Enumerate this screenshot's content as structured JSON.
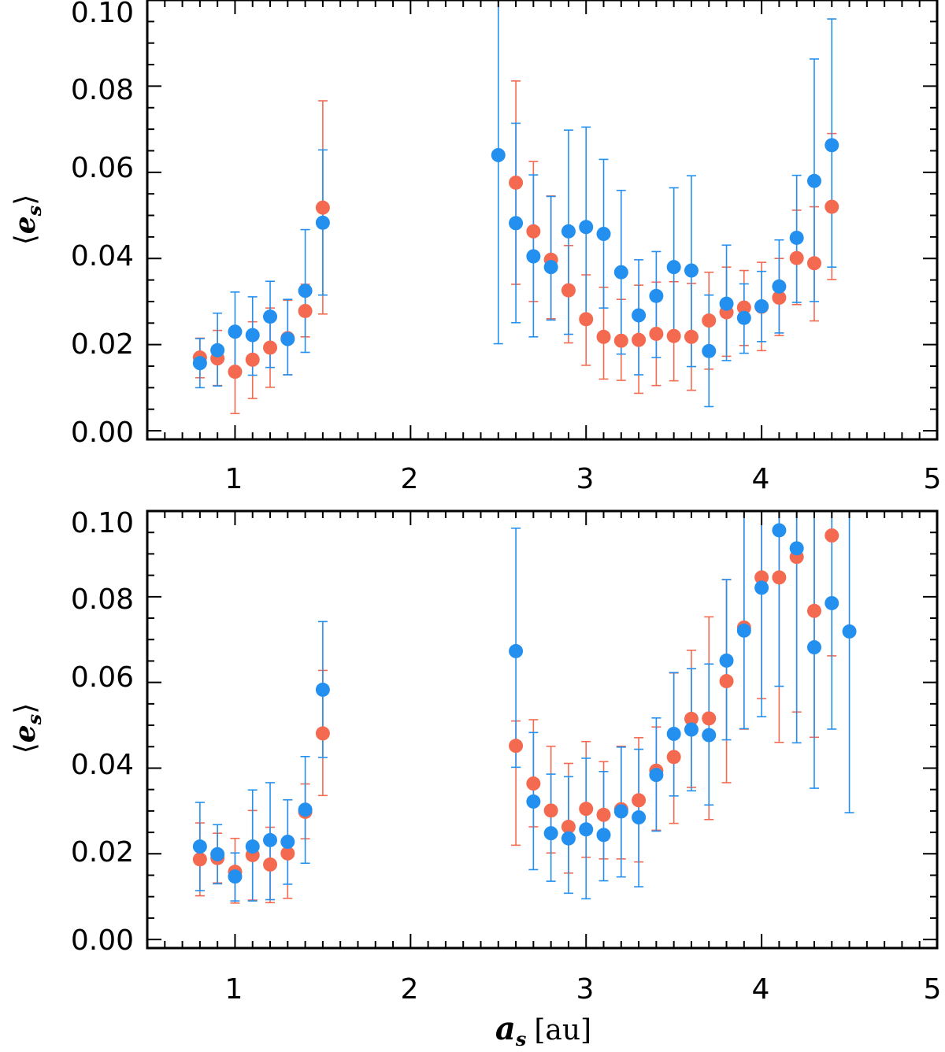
{
  "colors": {
    "series_red": "#f36a50",
    "series_blue": "#2390f0",
    "axis": "#000000"
  },
  "chart_data": [
    {
      "type": "scatter",
      "title": "",
      "xlabel": "",
      "ylabel": "⟨e_s⟩",
      "ylabel_parts": {
        "open": "⟨",
        "main": "e",
        "sub": "s",
        "close": "⟩"
      },
      "xlim": [
        0.5,
        5.0
      ],
      "ylim": [
        -0.002,
        0.1
      ],
      "xticks": [
        1,
        2,
        3,
        4,
        5
      ],
      "xtick_labels": [
        "1",
        "2",
        "3",
        "4",
        "5"
      ],
      "yticks": [
        0.0,
        0.02,
        0.04,
        0.06,
        0.08,
        0.1
      ],
      "ytick_labels": [
        "0.00",
        "0.02",
        "0.04",
        "0.06",
        "0.08",
        "0.10"
      ],
      "grid": false,
      "legend": null,
      "series": [
        {
          "color": "#f36a50",
          "x": [
            0.8,
            0.9,
            1.0,
            1.1,
            1.2,
            1.3,
            1.4,
            1.5,
            2.6,
            2.7,
            2.8,
            2.9,
            3.0,
            3.1,
            3.2,
            3.3,
            3.4,
            3.5,
            3.6,
            3.7,
            3.8,
            3.9,
            4.0,
            4.1,
            4.2,
            4.3,
            4.4
          ],
          "y": [
            0.017,
            0.0168,
            0.0137,
            0.0165,
            0.0193,
            0.0215,
            0.0278,
            0.0518,
            0.0576,
            0.0463,
            0.0397,
            0.0326,
            0.0259,
            0.0218,
            0.0209,
            0.0211,
            0.0225,
            0.022,
            0.0218,
            0.0256,
            0.0275,
            0.0286,
            0.0288,
            0.0309,
            0.0401,
            0.0389,
            0.052
          ],
          "err_low": [
            0.0047,
            0.0063,
            0.0097,
            0.009,
            0.0092,
            0.0085,
            0.006,
            0.0247,
            0.0236,
            0.0163,
            0.0137,
            0.0122,
            0.0107,
            0.0098,
            0.0092,
            0.0124,
            0.012,
            0.0104,
            0.0124,
            0.0113,
            0.0102,
            0.0088,
            0.0102,
            0.0088,
            0.0108,
            0.0134,
            0.0169
          ],
          "err_high": [
            0.0045,
            0.0065,
            0.0085,
            0.0088,
            0.0092,
            0.0088,
            0.0062,
            0.0248,
            0.0236,
            0.0162,
            0.0148,
            0.0104,
            0.0103,
            0.0115,
            0.0096,
            0.0127,
            0.012,
            0.0126,
            0.0124,
            0.0112,
            0.0105,
            0.0086,
            0.0103,
            0.0091,
            0.0111,
            0.0131,
            0.017
          ]
        },
        {
          "color": "#2390f0",
          "x": [
            0.8,
            0.9,
            1.0,
            1.1,
            1.2,
            1.3,
            1.4,
            1.5,
            2.5,
            2.6,
            2.7,
            2.8,
            2.9,
            3.0,
            3.1,
            3.2,
            3.3,
            3.4,
            3.5,
            3.6,
            3.7,
            3.8,
            3.9,
            4.0,
            4.1,
            4.2,
            4.3,
            4.4
          ],
          "y": [
            0.0157,
            0.0187,
            0.023,
            0.0222,
            0.0265,
            0.0213,
            0.0325,
            0.0483,
            0.064,
            0.0482,
            0.0405,
            0.038,
            0.0463,
            0.0473,
            0.0457,
            0.0368,
            0.0268,
            0.0313,
            0.038,
            0.0372,
            0.0185,
            0.0295,
            0.0262,
            0.0289,
            0.0335,
            0.0448,
            0.058,
            0.0663
          ],
          "err_low": [
            0.0057,
            0.0083,
            0.0102,
            0.0093,
            0.0118,
            0.0083,
            0.0143,
            0.0168,
            0.0438,
            0.0231,
            0.0187,
            0.0123,
            0.0239,
            0.0225,
            0.0172,
            0.019,
            0.0138,
            0.0143,
            0.0154,
            0.0223,
            0.0129,
            0.0132,
            0.0082,
            0.0082,
            0.0108,
            0.015,
            0.028,
            0.0283
          ],
          "err_high": [
            0.0057,
            0.0086,
            0.0092,
            0.0089,
            0.0082,
            0.0092,
            0.0142,
            0.0169,
            0.036,
            0.0232,
            0.0189,
            0.0164,
            0.0235,
            0.0232,
            0.0173,
            0.019,
            0.0129,
            0.0103,
            0.0184,
            0.022,
            0.013,
            0.0136,
            0.0079,
            0.0081,
            0.0108,
            0.0145,
            0.0283,
            0.0293
          ]
        }
      ]
    },
    {
      "type": "scatter",
      "title": "",
      "xlabel": "a_s [au]",
      "xlabel_parts": {
        "main": "a",
        "sub": "s",
        "unit": "[au]"
      },
      "ylabel": "⟨e_s⟩",
      "ylabel_parts": {
        "open": "⟨",
        "main": "e",
        "sub": "s",
        "close": "⟩"
      },
      "xlim": [
        0.5,
        5.0
      ],
      "ylim": [
        -0.002,
        0.1
      ],
      "xticks": [
        1,
        2,
        3,
        4,
        5
      ],
      "xtick_labels": [
        "1",
        "2",
        "3",
        "4",
        "5"
      ],
      "yticks": [
        0.0,
        0.02,
        0.04,
        0.06,
        0.08,
        0.1
      ],
      "ytick_labels": [
        "0.00",
        "0.02",
        "0.04",
        "0.06",
        "0.08",
        "0.10"
      ],
      "grid": false,
      "legend": null,
      "series": [
        {
          "color": "#f36a50",
          "x": [
            0.8,
            0.9,
            1.0,
            1.1,
            1.2,
            1.3,
            1.4,
            1.5,
            2.6,
            2.7,
            2.8,
            2.9,
            3.0,
            3.1,
            3.2,
            3.3,
            3.4,
            3.5,
            3.6,
            3.7,
            3.8,
            3.9,
            4.0,
            4.1,
            4.2,
            4.3,
            4.4
          ],
          "y": [
            0.0187,
            0.019,
            0.0158,
            0.0197,
            0.0175,
            0.0201,
            0.0298,
            0.0481,
            0.0452,
            0.0364,
            0.0301,
            0.0263,
            0.0305,
            0.0291,
            0.0304,
            0.0325,
            0.0394,
            0.0426,
            0.0515,
            0.0516,
            0.0603,
            0.0728,
            0.0845,
            0.0845,
            0.0893,
            0.0767,
            0.0943
          ],
          "err_low": [
            0.0085,
            0.0058,
            0.0073,
            0.0105,
            0.0089,
            0.0105,
            0.0063,
            0.0145,
            0.0232,
            0.0101,
            0.0099,
            0.0108,
            0.0113,
            0.0103,
            0.0116,
            0.0144,
            0.0139,
            0.0155,
            0.016,
            0.0236,
            0.0237,
            0.0237,
            0.0283,
            0.0385,
            0.0362,
            0.0295,
            0.0281
          ],
          "err_high": [
            0.0085,
            0.0058,
            0.0078,
            0.0104,
            0.0087,
            0.0125,
            0.0065,
            0.0147,
            0.0058,
            0.0149,
            0.015,
            0.0148,
            0.0157,
            0.0124,
            0.0147,
            0.0146,
            0.0102,
            0.0196,
            0.016,
            0.0237,
            0.0237,
            0.0272,
            0.0155,
            0.0155,
            0.0107,
            0.0233,
            0.0057
          ]
        },
        {
          "color": "#2390f0",
          "x": [
            0.8,
            0.9,
            1.0,
            1.1,
            1.2,
            1.3,
            1.4,
            1.5,
            2.6,
            2.7,
            2.8,
            2.9,
            3.0,
            3.1,
            3.2,
            3.3,
            3.4,
            3.5,
            3.6,
            3.7,
            3.8,
            3.9,
            4.0,
            4.1,
            4.2,
            4.3,
            4.4,
            4.5
          ],
          "y": [
            0.0217,
            0.0199,
            0.0147,
            0.0217,
            0.0232,
            0.0228,
            0.0303,
            0.0583,
            0.0673,
            0.0322,
            0.0248,
            0.0236,
            0.0257,
            0.0244,
            0.0299,
            0.0285,
            0.0384,
            0.048,
            0.049,
            0.0477,
            0.0651,
            0.0721,
            0.0821,
            0.0955,
            0.0913,
            0.0682,
            0.0785,
            0.0719
          ],
          "err_low": [
            0.0103,
            0.0069,
            0.0057,
            0.0127,
            0.0139,
            0.0099,
            0.0125,
            0.0158,
            0.0271,
            0.0159,
            0.0112,
            0.0128,
            0.0162,
            0.0107,
            0.0153,
            0.0162,
            0.0131,
            0.0145,
            0.0143,
            0.0163,
            0.0185,
            0.0229,
            0.0301,
            0.0364,
            0.0454,
            0.0329,
            0.0294,
            0.0423
          ],
          "err_high": [
            0.0103,
            0.0069,
            0.0055,
            0.0132,
            0.0134,
            0.0098,
            0.0124,
            0.0159,
            0.0287,
            0.0161,
            0.0138,
            0.0144,
            0.0166,
            0.0148,
            0.015,
            0.0159,
            0.0133,
            0.0143,
            0.0142,
            0.0166,
            0.0189,
            0.0279,
            0.0179,
            0.0045,
            0.0087,
            0.0318,
            0.0215,
            0.0281
          ]
        }
      ]
    }
  ]
}
